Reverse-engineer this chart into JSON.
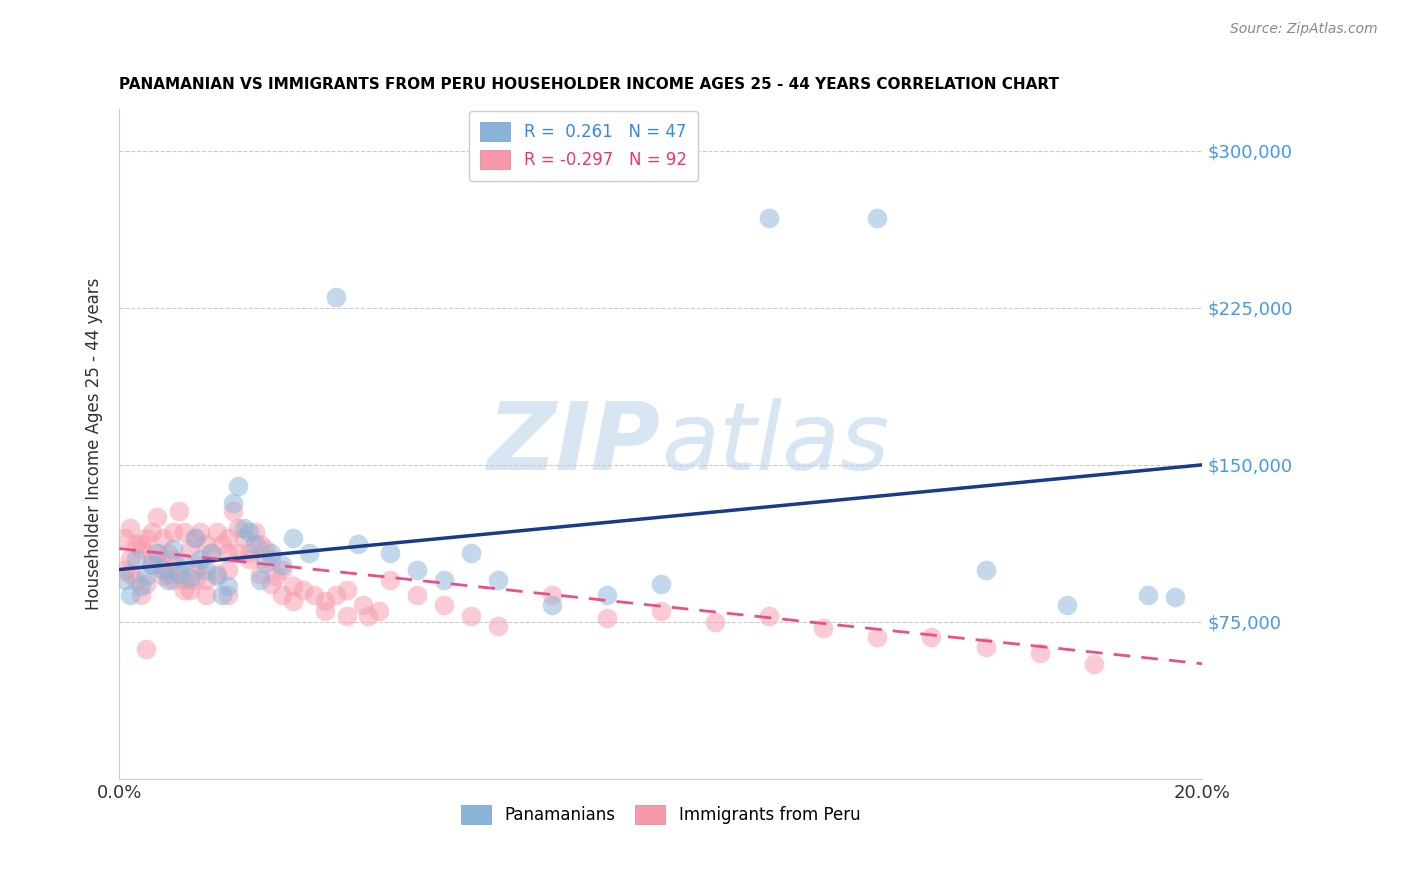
{
  "title": "PANAMANIAN VS IMMIGRANTS FROM PERU HOUSEHOLDER INCOME AGES 25 - 44 YEARS CORRELATION CHART",
  "source": "Source: ZipAtlas.com",
  "ylabel": "Householder Income Ages 25 - 44 years",
  "xlim": [
    0.0,
    0.2
  ],
  "ylim": [
    0,
    320000
  ],
  "yticks": [
    0,
    75000,
    150000,
    225000,
    300000
  ],
  "ytick_labels": [
    "",
    "$75,000",
    "$150,000",
    "$225,000",
    "$300,000"
  ],
  "xticks": [
    0.0,
    0.05,
    0.1,
    0.15,
    0.2
  ],
  "xtick_labels": [
    "0.0%",
    "",
    "",
    "",
    "20.0%"
  ],
  "blue_color": "#89B3D9",
  "pink_color": "#F799AA",
  "trend_blue": "#1A3A8A",
  "trend_pink": "#E8508A",
  "watermark_zip": "ZIP",
  "watermark_atlas": "atlas",
  "pan_x": [
    0.001,
    0.002,
    0.003,
    0.004,
    0.005,
    0.006,
    0.007,
    0.008,
    0.009,
    0.01,
    0.011,
    0.012,
    0.013,
    0.014,
    0.015,
    0.016,
    0.017,
    0.018,
    0.019,
    0.02,
    0.021,
    0.022,
    0.023,
    0.024,
    0.025,
    0.026,
    0.027,
    0.028,
    0.03,
    0.032,
    0.035,
    0.04,
    0.044,
    0.05,
    0.055,
    0.06,
    0.065,
    0.07,
    0.08,
    0.09,
    0.1,
    0.12,
    0.14,
    0.16,
    0.175,
    0.19,
    0.195
  ],
  "pan_y": [
    95000,
    88000,
    105000,
    92000,
    97000,
    102000,
    108000,
    100000,
    95000,
    110000,
    98000,
    103000,
    96000,
    115000,
    105000,
    100000,
    108000,
    97000,
    88000,
    92000,
    132000,
    140000,
    120000,
    118000,
    112000,
    95000,
    103000,
    108000,
    102000,
    115000,
    108000,
    230000,
    112000,
    108000,
    100000,
    95000,
    108000,
    95000,
    83000,
    88000,
    93000,
    268000,
    268000,
    100000,
    83000,
    88000,
    87000
  ],
  "peru_x": [
    0.001,
    0.001,
    0.002,
    0.002,
    0.003,
    0.003,
    0.004,
    0.004,
    0.005,
    0.005,
    0.006,
    0.006,
    0.007,
    0.007,
    0.008,
    0.008,
    0.009,
    0.009,
    0.01,
    0.01,
    0.011,
    0.011,
    0.012,
    0.012,
    0.013,
    0.013,
    0.014,
    0.014,
    0.015,
    0.015,
    0.016,
    0.016,
    0.017,
    0.018,
    0.019,
    0.02,
    0.021,
    0.022,
    0.023,
    0.024,
    0.025,
    0.026,
    0.027,
    0.028,
    0.029,
    0.03,
    0.032,
    0.034,
    0.036,
    0.038,
    0.04,
    0.042,
    0.045,
    0.048,
    0.05,
    0.055,
    0.06,
    0.065,
    0.07,
    0.08,
    0.09,
    0.1,
    0.11,
    0.12,
    0.13,
    0.14,
    0.15,
    0.16,
    0.17,
    0.18,
    0.002,
    0.004,
    0.006,
    0.008,
    0.01,
    0.012,
    0.014,
    0.016,
    0.018,
    0.02,
    0.022,
    0.024,
    0.026,
    0.028,
    0.03,
    0.032,
    0.038,
    0.042,
    0.02,
    0.005,
    0.046,
    0.02
  ],
  "peru_y": [
    100000,
    115000,
    105000,
    120000,
    95000,
    112000,
    110000,
    88000,
    93000,
    115000,
    118000,
    102000,
    108000,
    125000,
    115000,
    97000,
    108000,
    98000,
    105000,
    118000,
    128000,
    100000,
    118000,
    95000,
    110000,
    90000,
    115000,
    100000,
    118000,
    102000,
    112000,
    95000,
    108000,
    118000,
    112000,
    108000,
    128000,
    120000,
    115000,
    108000,
    118000,
    112000,
    110000,
    105000,
    97000,
    100000,
    92000,
    90000,
    88000,
    85000,
    88000,
    90000,
    83000,
    80000,
    95000,
    88000,
    83000,
    78000,
    73000,
    88000,
    77000,
    80000,
    75000,
    78000,
    72000,
    68000,
    68000,
    63000,
    60000,
    55000,
    98000,
    112000,
    105000,
    102000,
    95000,
    90000,
    95000,
    88000,
    98000,
    100000,
    108000,
    105000,
    98000,
    93000,
    88000,
    85000,
    80000,
    78000,
    88000,
    62000,
    78000,
    115000
  ]
}
